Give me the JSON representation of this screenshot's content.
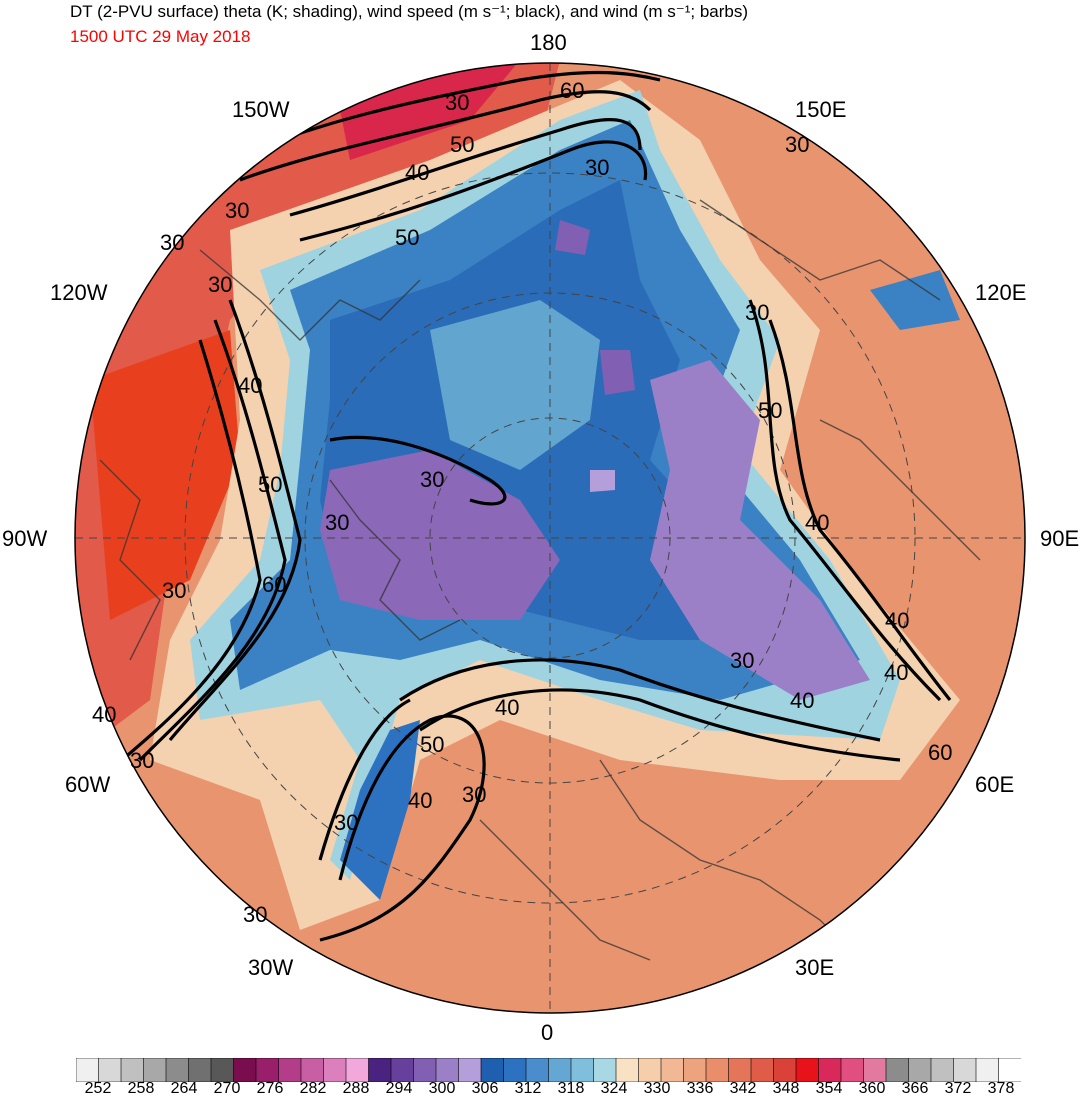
{
  "header": {
    "title": "DT (2-PVU surface) theta (K; shading), wind speed (m s⁻¹; black), and wind (m s⁻¹; barbs)",
    "timestamp": "1500 UTC 29 May 2018",
    "timestamp_color": "#ff0000"
  },
  "longitude_labels": {
    "top": "180",
    "top_left": "150W",
    "top_right": "150E",
    "upper_left": "120W",
    "upper_right": "120E",
    "left": "90W",
    "right": "90E",
    "lower_left": "60W",
    "lower_right": "60E",
    "bottom_left": "30W",
    "bottom_right": "30E",
    "bottom": "0"
  },
  "contour_labels": [
    "30",
    "40",
    "50",
    "60"
  ],
  "colorbar": {
    "labels": [
      "252",
      "258",
      "264",
      "270",
      "276",
      "282",
      "288",
      "294",
      "300",
      "306",
      "312",
      "318",
      "324",
      "330",
      "336",
      "342",
      "348",
      "354",
      "360",
      "366",
      "372",
      "378"
    ],
    "colors": [
      "#f0f0f0",
      "#d8d8d8",
      "#c0c0c0",
      "#a8a8a8",
      "#8c8c8c",
      "#707070",
      "#585858",
      "#7a0d4e",
      "#9a1f6a",
      "#b33d88",
      "#c85ea3",
      "#dc80bd",
      "#f2a8db",
      "#4a2380",
      "#67409e",
      "#8160b3",
      "#9b80c8",
      "#b59fdb",
      "#1e5fb0",
      "#2d72c0",
      "#4b8dcc",
      "#64a7d2",
      "#80bfdc",
      "#a8d8e4",
      "#f9e2c4",
      "#f6ceac",
      "#f2b895",
      "#eea37f",
      "#e98d6b",
      "#e47559",
      "#df5c48",
      "#da4138",
      "#e8121a",
      "#d8295a",
      "#e04f80",
      "#e27aa0",
      "#8c8c8c",
      "#a8a8a8",
      "#c0c0c0",
      "#d8d8d8",
      "#f0f0f0",
      "#ffffff"
    ]
  }
}
